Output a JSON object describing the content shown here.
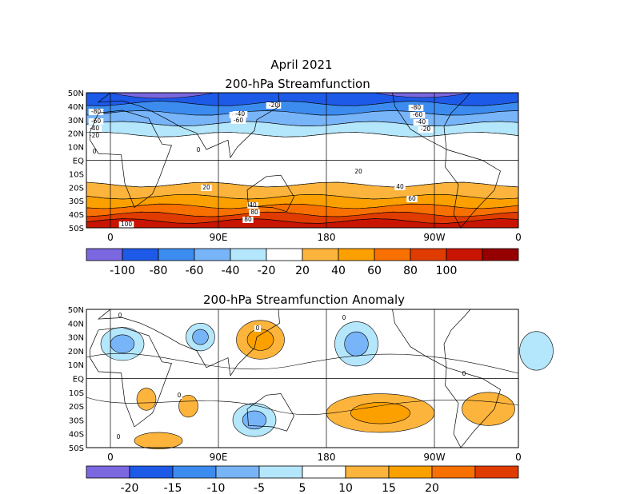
{
  "chart_data": [
    {
      "type": "heatmap",
      "title": "April 2021",
      "subtitle": "200-hPa Streamfunction",
      "lat_labels": [
        "50N",
        "40N",
        "30N",
        "20N",
        "10N",
        "EQ",
        "10S",
        "20S",
        "30S",
        "40S",
        "50S"
      ],
      "lon_labels": [
        "0",
        "90E",
        "180",
        "90W",
        "0"
      ],
      "colorbar": {
        "labels": [
          "-100",
          "-80",
          "-60",
          "-40",
          "-20",
          "20",
          "40",
          "60",
          "80",
          "100"
        ],
        "colors": [
          "#7b68e0",
          "#1e5ae8",
          "#3c8cf0",
          "#78b4f8",
          "#b4e6fc",
          "#ffffff",
          "#fcb43c",
          "#fca000",
          "#f87000",
          "#e03c00",
          "#c81400",
          "#960000"
        ]
      },
      "contour_labels": [
        "-80",
        "-60",
        "-40",
        "-20",
        "-80",
        "-60",
        "-40",
        "-20",
        "-80",
        "-60",
        "-40",
        "-20",
        "0",
        "0",
        "20",
        "20",
        "40",
        "40",
        "60",
        "80",
        "100",
        "80"
      ],
      "bands": [
        {
          "lat": 50,
          "color": "#1e5ae8"
        },
        {
          "lat": 42,
          "color": "#3c8cf0"
        },
        {
          "lat": 35,
          "color": "#78b4f8"
        },
        {
          "lat": 27,
          "color": "#b4e6fc"
        },
        {
          "lat": 19,
          "color": "#ffffff"
        },
        {
          "lat": -18,
          "color": "#fcb43c"
        },
        {
          "lat": -27,
          "color": "#fca000"
        },
        {
          "lat": -34,
          "color": "#f87000"
        },
        {
          "lat": -40,
          "color": "#e03c00"
        },
        {
          "lat": -45,
          "color": "#c81400"
        }
      ]
    },
    {
      "type": "heatmap",
      "title": "200-hPa Streamfunction Anomaly",
      "lat_labels": [
        "50N",
        "40N",
        "30N",
        "20N",
        "10N",
        "EQ",
        "10S",
        "20S",
        "30S",
        "40S",
        "50S"
      ],
      "lon_labels": [
        "0",
        "90E",
        "180",
        "90W",
        "0"
      ],
      "colorbar": {
        "labels": [
          "-20",
          "-15",
          "-10",
          "-5",
          "5",
          "10",
          "15",
          "20"
        ],
        "colors": [
          "#7b68e0",
          "#1e5ae8",
          "#3c8cf0",
          "#78b4f8",
          "#b4e6fc",
          "#ffffff",
          "#fcb43c",
          "#fca000",
          "#f87000",
          "#e03c00"
        ]
      },
      "contour_labels": [
        "0",
        "0",
        "0",
        "0",
        "0",
        "0"
      ],
      "blobs": [
        {
          "lon": 10,
          "lat": 25,
          "rlon": 18,
          "rlat": 12,
          "level": -2
        },
        {
          "lon": 75,
          "lat": 30,
          "rlon": 12,
          "rlat": 10,
          "level": -2
        },
        {
          "lon": 125,
          "lat": 28,
          "rlon": 20,
          "rlat": 14,
          "level": 2
        },
        {
          "lon": 120,
          "lat": -30,
          "rlon": 18,
          "rlat": 12,
          "level": -2
        },
        {
          "lon": 205,
          "lat": 25,
          "rlon": 18,
          "rlat": 16,
          "level": -2
        },
        {
          "lon": 225,
          "lat": -25,
          "rlon": 45,
          "rlat": 14,
          "level": 2
        },
        {
          "lon": 315,
          "lat": -22,
          "rlon": 22,
          "rlat": 12,
          "level": 1
        },
        {
          "lon": 355,
          "lat": 20,
          "rlon": 14,
          "rlat": 14,
          "level": -1
        },
        {
          "lon": 30,
          "lat": -15,
          "rlon": 8,
          "rlat": 8,
          "level": 1
        },
        {
          "lon": 40,
          "lat": -45,
          "rlon": 20,
          "rlat": 6,
          "level": 1
        },
        {
          "lon": 65,
          "lat": -20,
          "rlon": 8,
          "rlat": 8,
          "level": 1
        }
      ]
    }
  ]
}
